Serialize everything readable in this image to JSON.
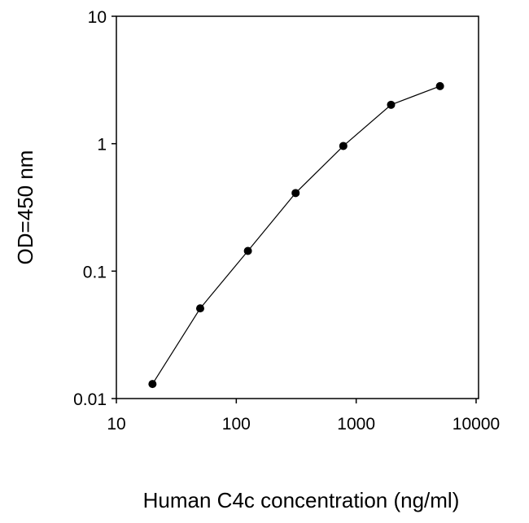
{
  "chart_data": {
    "type": "line",
    "title": "",
    "xlabel": "Human C4c concentration (ng/ml)",
    "ylabel": "OD=450 nm",
    "xscale": "log",
    "yscale": "log",
    "xlim": [
      10,
      10000
    ],
    "ylim": [
      0.01,
      10
    ],
    "xticks": [
      10,
      100,
      1000,
      10000
    ],
    "xtick_labels": [
      "10",
      "100",
      "1000",
      "10000"
    ],
    "yticks": [
      0.01,
      0.1,
      1,
      10
    ],
    "ytick_labels": [
      "0.01",
      "0.1",
      "1",
      "10"
    ],
    "grid": false,
    "legend": "none",
    "series": [
      {
        "x": [
          20,
          50,
          125,
          312.5,
          781,
          1953,
          5000
        ],
        "y": [
          0.013,
          0.051,
          0.144,
          0.41,
          0.96,
          2.02,
          2.83
        ],
        "color": "#000000",
        "marker": "circle"
      }
    ]
  }
}
